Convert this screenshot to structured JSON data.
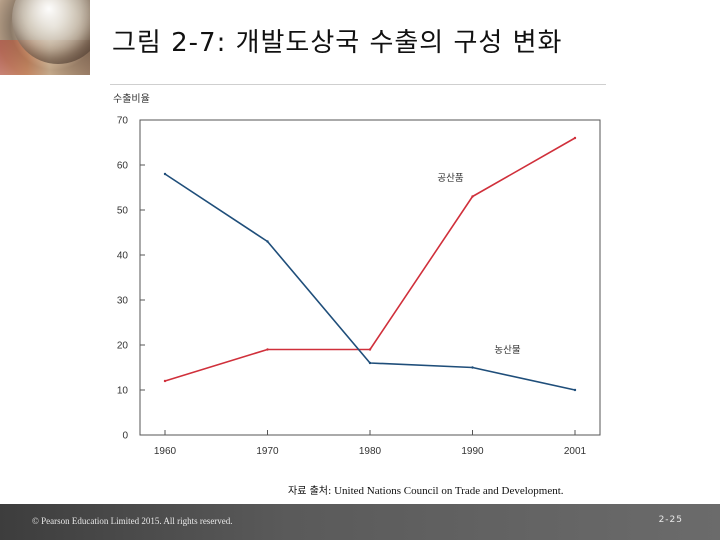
{
  "slide": {
    "title": "그림 2-7: 개발도상국 수출의 구성 변화",
    "source_prefix": "자료 출처:",
    "source_text": " United Nations Council on Trade and Development.",
    "copyright": "© Pearson Education Limited 2015. All rights reserved.",
    "page_number": "2-25"
  },
  "chart_data": {
    "type": "line",
    "title": "",
    "xlabel": "",
    "ylabel": "수출비율",
    "x": [
      1960,
      1970,
      1980,
      1990,
      2001
    ],
    "x_tick_labels": [
      "1960",
      "1970",
      "1980",
      "1990",
      "2001"
    ],
    "ylim": [
      0,
      70
    ],
    "y_ticks": [
      0,
      10,
      20,
      30,
      40,
      50,
      60,
      70
    ],
    "grid": false,
    "legend": "inline labels",
    "series": [
      {
        "name": "공산품",
        "color": "#d0303b",
        "values": [
          12,
          19,
          19,
          53,
          66
        ]
      },
      {
        "name": "농산물",
        "color": "#1f4e7a",
        "values": [
          58,
          43,
          16,
          15,
          10
        ]
      }
    ]
  }
}
